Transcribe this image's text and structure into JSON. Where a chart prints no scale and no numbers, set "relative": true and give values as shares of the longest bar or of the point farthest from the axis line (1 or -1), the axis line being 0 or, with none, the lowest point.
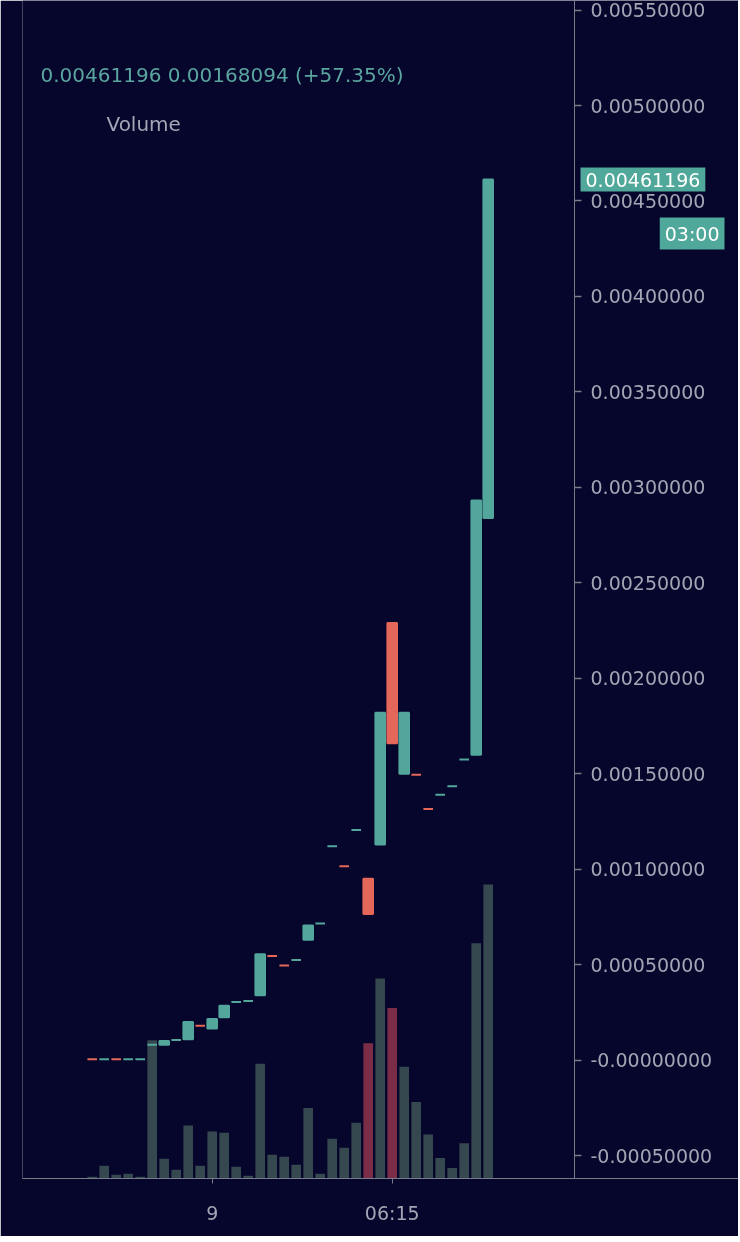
{
  "chart_data": [
    {
      "type": "candlestick",
      "subtitle": "0.00461196 0.00168094 (+57.35%)",
      "categories": [
        null,
        null,
        null,
        null,
        null,
        null,
        null,
        null,
        null,
        null,
        "9",
        null,
        null,
        null,
        null,
        null,
        null,
        null,
        null,
        null,
        null,
        null,
        null,
        null,
        null,
        "06:15",
        null,
        null,
        null,
        null,
        null,
        null,
        null,
        null
      ],
      "ohlc": [
        [
          4e-06,
          4e-06,
          4e-06,
          4e-06
        ],
        [
          4e-06,
          4e-06,
          4e-06,
          4e-06
        ],
        [
          4e-06,
          4e-06,
          4e-06,
          4e-06
        ],
        [
          4e-06,
          4e-06,
          4e-06,
          4e-06
        ],
        [
          4e-06,
          4e-06,
          4e-06,
          4e-06
        ],
        [
          8e-05,
          8e-05,
          8e-05,
          8e-05
        ],
        [
          8e-05,
          0.0001,
          8e-05,
          0.0001
        ],
        [
          0.000105,
          0.000105,
          0.000105,
          0.000105
        ],
        [
          0.00011,
          0.0002,
          0.00011,
          0.0002
        ],
        [
          0.00018,
          0.00018,
          0.00018,
          0.00018
        ],
        [
          0.000165,
          0.000215,
          0.000165,
          0.000215
        ],
        [
          0.000225,
          0.000285,
          0.000225,
          0.000285
        ],
        [
          0.000305,
          0.000305,
          0.000305,
          0.000305
        ],
        [
          0.00031,
          0.00031,
          0.00031,
          0.00031
        ],
        [
          0.00034,
          0.000555,
          0.00034,
          0.000555
        ],
        [
          0.000545,
          0.000545,
          0.000545,
          0.000545
        ],
        [
          0.000495,
          0.000495,
          0.000495,
          0.000495
        ],
        [
          0.000525,
          0.000525,
          0.000525,
          0.000525
        ],
        [
          0.00063,
          0.000705,
          0.00063,
          0.000705
        ],
        [
          0.000715,
          0.000715,
          0.000715,
          0.000715
        ],
        [
          0.00112,
          0.00112,
          0.00112,
          0.00112
        ],
        [
          0.001015,
          0.001015,
          0.001015,
          0.001015
        ],
        [
          0.001205,
          0.001205,
          0.001205,
          0.001205
        ],
        [
          0.00095,
          0.00095,
          0.000765,
          0.000765
        ],
        [
          0.00113,
          0.00182,
          0.00113,
          0.00182
        ],
        [
          0.00229,
          0.00229,
          0.00166,
          0.00166
        ],
        [
          0.0015,
          0.00182,
          0.0015,
          0.00182
        ],
        [
          0.001495,
          0.001495,
          0.001495,
          0.001495
        ],
        [
          0.001315,
          0.001315,
          0.001315,
          0.001315
        ],
        [
          0.00139,
          0.00139,
          0.00139,
          0.00139
        ],
        [
          0.001435,
          0.001435,
          0.001435,
          0.001435
        ],
        [
          0.001575,
          0.001575,
          0.001575,
          0.001575
        ],
        [
          0.0016,
          0.00293102,
          0.0016,
          0.00293102
        ],
        [
          0.00284,
          0.00461196,
          0.00284,
          0.00461196
        ]
      ],
      "colors": [
        "#e4675a",
        "#53a69b",
        "#e4675a",
        "#53a69b",
        "#53a69b",
        "#53a69b",
        "#53a69b",
        "#53a69b",
        "#53a69b",
        "#e4675a",
        "#53a69b",
        "#53a69b",
        "#53a69b",
        "#53a69b",
        "#53a69b",
        "#e4675a",
        "#e4675a",
        "#53a69b",
        "#53a69b",
        "#53a69b",
        "#53a69b",
        "#e4675a",
        "#53a69b",
        "#e4675a",
        "#53a69b",
        "#e4675a",
        "#53a69b",
        "#e4675a",
        "#e4675a",
        "#53a69b",
        "#53a69b",
        "#53a69b",
        "#53a69b",
        "#53a69b"
      ],
      "ylim": [
        -0.00062,
        0.00555
      ],
      "yticks": [
        {
          "value": -0.0005,
          "label": "-0.00050000"
        },
        {
          "value": 0,
          "label": "-0.00000000"
        },
        {
          "value": 0.0005,
          "label": "0.00050000"
        },
        {
          "value": 0.001,
          "label": "0.00100000"
        },
        {
          "value": 0.0015,
          "label": "0.00150000"
        },
        {
          "value": 0.002,
          "label": "0.00200000"
        },
        {
          "value": 0.0025,
          "label": "0.00250000"
        },
        {
          "value": 0.003,
          "label": "0.00300000"
        },
        {
          "value": 0.0035,
          "label": "0.00350000"
        },
        {
          "value": 0.004,
          "label": "0.00400000"
        },
        {
          "value": 0.0045,
          "label": "0.00450000"
        },
        {
          "value": 0.005,
          "label": "0.00500000"
        },
        {
          "value": 0.0055,
          "label": "0.00550000"
        }
      ],
      "annotations": [
        "0.00461196",
        "03:00"
      ]
    },
    {
      "type": "bar",
      "title": "Volume",
      "relative": true,
      "categories": [
        null,
        null,
        null,
        null,
        null,
        null,
        null,
        null,
        null,
        null,
        null,
        null,
        null,
        null,
        null,
        null,
        null,
        null,
        null,
        null,
        null,
        null,
        null,
        null,
        null,
        null,
        null,
        null,
        null,
        null,
        null,
        null,
        null,
        null
      ],
      "values": [
        0.006,
        0.043,
        0.013,
        0.016,
        0.006,
        0.47,
        0.067,
        0.03,
        0.18,
        0.043,
        0.16,
        0.156,
        0.04,
        0.009,
        0.39,
        0.081,
        0.074,
        0.047,
        0.24,
        0.016,
        0.135,
        0.105,
        0.19,
        0.46,
        0.68,
        0.58,
        0.38,
        0.26,
        0.15,
        0.07,
        0.036,
        0.12,
        0.8,
        1
      ],
      "colors": [
        "#36484f",
        "#36484f",
        "#36484f",
        "#36484f",
        "#36484f",
        "#36484f",
        "#36484f",
        "#36484f",
        "#36484f",
        "#36484f",
        "#36484f",
        "#36484f",
        "#36484f",
        "#36484f",
        "#36484f",
        "#36484f",
        "#36484f",
        "#36484f",
        "#36484f",
        "#36484f",
        "#36484f",
        "#36484f",
        "#36484f",
        "#7b2c47",
        "#36484f",
        "#7b2c47",
        "#36484f",
        "#36484f",
        "#36484f",
        "#36484f",
        "#36484f",
        "#36484f",
        "#36484f",
        "#36484f"
      ]
    }
  ]
}
